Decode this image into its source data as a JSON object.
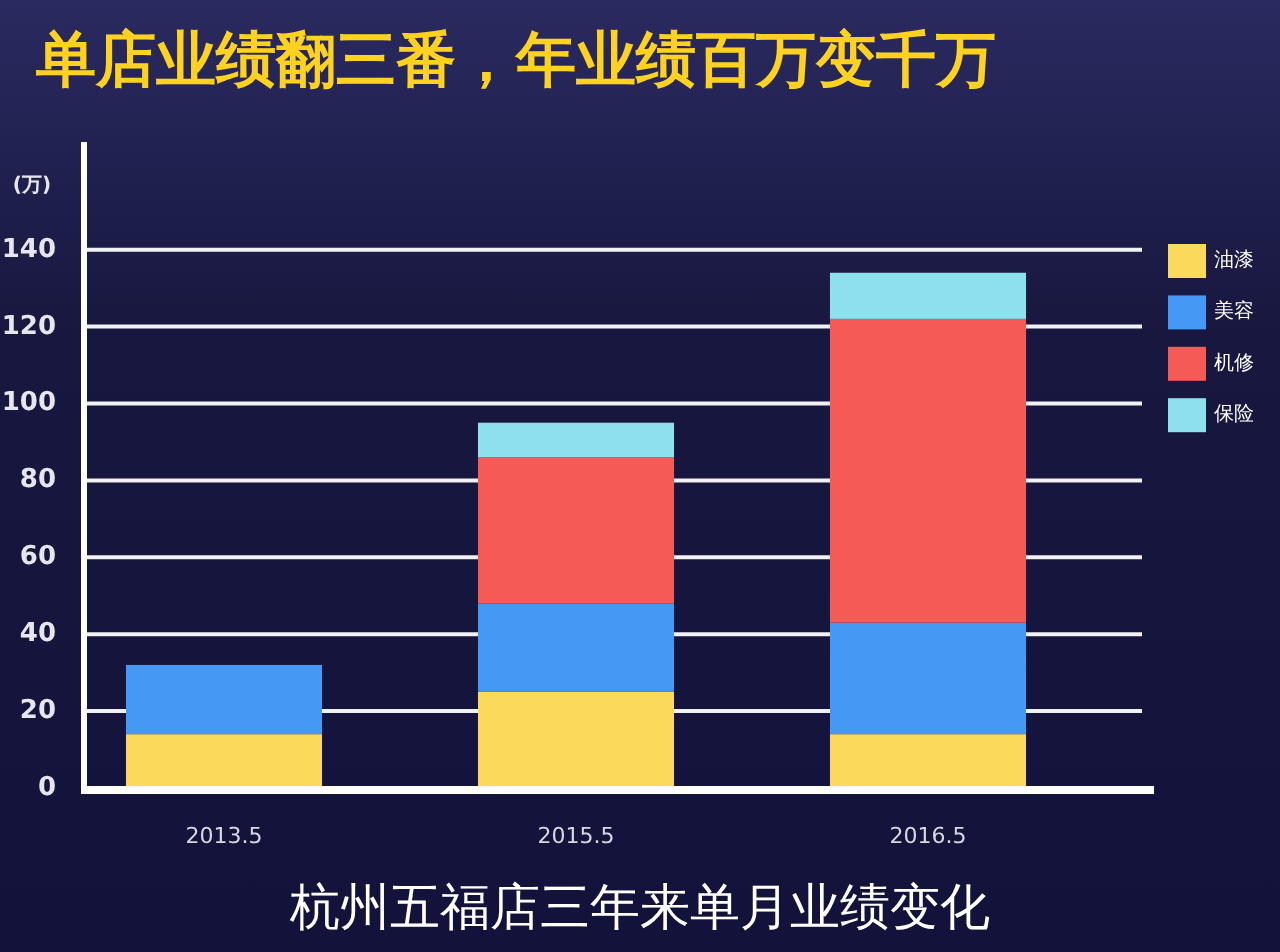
{
  "chart_data": {
    "type": "bar",
    "stacked": true,
    "title": "单店业绩翻三番，年业绩百万变千万",
    "ylabel": "(万)",
    "categories": [
      "2013.5",
      "2015.5",
      "2016.5"
    ],
    "series": [
      {
        "name": "油漆",
        "color": "#fbd95a",
        "values": [
          14,
          25,
          14
        ]
      },
      {
        "name": "美容",
        "color": "#4499f5",
        "values": [
          18,
          23,
          29
        ]
      },
      {
        "name": "机修",
        "color": "#f55a56",
        "values": [
          null,
          38,
          79
        ]
      },
      {
        "name": "保险",
        "color": "#8ee0ef",
        "values": [
          null,
          9,
          12
        ]
      }
    ],
    "ylim": [
      0,
      168
    ],
    "yticks": [
      0,
      20,
      40,
      60,
      80,
      100,
      120,
      140
    ],
    "grid": "y",
    "legend": "right",
    "annotations": [
      "杭州五福店三年来单月业绩变化"
    ]
  }
}
